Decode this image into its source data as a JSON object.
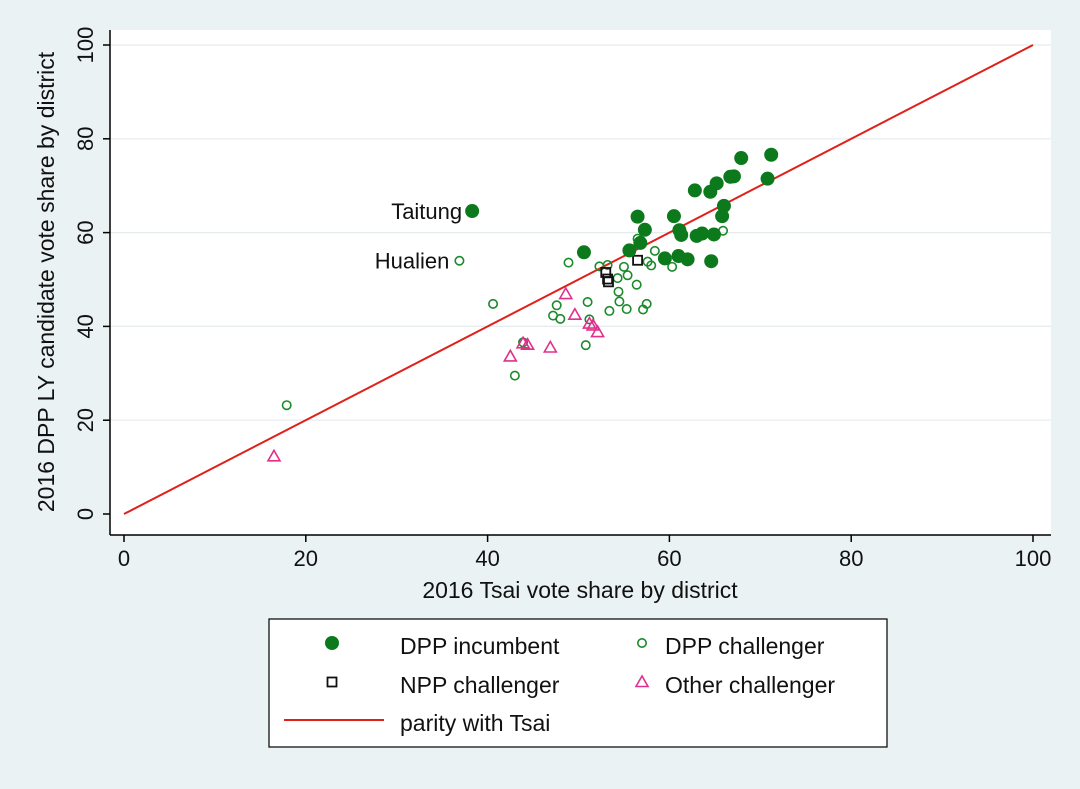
{
  "chart_data": {
    "type": "scatter",
    "title": "",
    "xlabel": "2016 Tsai vote share by district",
    "ylabel": "2016 DPP LY candidate vote share by district",
    "xlim": [
      0,
      100
    ],
    "ylim": [
      0,
      100
    ],
    "xticks": [
      0,
      20,
      40,
      60,
      80,
      100
    ],
    "yticks": [
      0,
      20,
      40,
      60,
      80,
      100
    ],
    "grid": "horizontal",
    "legend_position": "bottom",
    "colors": {
      "incumbent": "#0c7a1c",
      "challenger": "#1a8a2a",
      "npp": "#111111",
      "other": "#e0308c",
      "parity": "#e0201a",
      "plot_background": "#ffffff",
      "outer_background": "#eaf2f3"
    },
    "series": [
      {
        "name": "DPP incumbent",
        "marker": "filled-circle",
        "points": [
          [
            38.3,
            64.6
          ],
          [
            50.6,
            55.8
          ],
          [
            55.6,
            56.2
          ],
          [
            56.5,
            63.4
          ],
          [
            56.8,
            57.8
          ],
          [
            57.3,
            60.6
          ],
          [
            59.5,
            54.5
          ],
          [
            60.5,
            63.5
          ],
          [
            61.0,
            55.0
          ],
          [
            61.1,
            60.5
          ],
          [
            61.3,
            59.5
          ],
          [
            62.0,
            54.3
          ],
          [
            62.8,
            69.0
          ],
          [
            63.0,
            59.3
          ],
          [
            63.6,
            59.8
          ],
          [
            64.5,
            68.7
          ],
          [
            64.6,
            53.9
          ],
          [
            64.9,
            59.6
          ],
          [
            65.2,
            70.5
          ],
          [
            65.8,
            63.5
          ],
          [
            66.0,
            65.7
          ],
          [
            66.7,
            71.9
          ],
          [
            67.1,
            72.0
          ],
          [
            67.9,
            75.9
          ],
          [
            70.8,
            71.5
          ],
          [
            71.2,
            76.6
          ]
        ]
      },
      {
        "name": "DPP challenger",
        "marker": "hollow-circle",
        "points": [
          [
            17.9,
            23.2
          ],
          [
            36.9,
            54.0
          ],
          [
            40.6,
            44.8
          ],
          [
            43.0,
            29.5
          ],
          [
            43.9,
            36.6
          ],
          [
            47.2,
            42.3
          ],
          [
            47.6,
            44.5
          ],
          [
            48.0,
            41.6
          ],
          [
            48.9,
            53.6
          ],
          [
            50.8,
            36.0
          ],
          [
            51.0,
            45.2
          ],
          [
            51.2,
            41.5
          ],
          [
            52.3,
            52.8
          ],
          [
            53.2,
            53.1
          ],
          [
            53.4,
            43.3
          ],
          [
            54.3,
            50.3
          ],
          [
            54.4,
            47.4
          ],
          [
            54.5,
            45.3
          ],
          [
            55.0,
            52.7
          ],
          [
            55.3,
            43.7
          ],
          [
            55.4,
            50.9
          ],
          [
            56.4,
            48.9
          ],
          [
            56.5,
            58.7
          ],
          [
            57.1,
            43.6
          ],
          [
            57.5,
            44.8
          ],
          [
            57.6,
            53.8
          ],
          [
            58.0,
            53.0
          ],
          [
            58.4,
            56.1
          ],
          [
            60.3,
            52.7
          ],
          [
            65.9,
            60.4
          ]
        ]
      },
      {
        "name": "NPP challenger",
        "marker": "hollow-square",
        "points": [
          [
            53.0,
            51.5
          ],
          [
            53.2,
            50.1
          ],
          [
            53.3,
            49.5
          ],
          [
            56.5,
            54.1
          ]
        ]
      },
      {
        "name": "Other challenger",
        "marker": "hollow-triangle",
        "points": [
          [
            16.5,
            12.3
          ],
          [
            42.5,
            33.6
          ],
          [
            43.9,
            36.4
          ],
          [
            44.4,
            36.1
          ],
          [
            46.9,
            35.5
          ],
          [
            48.6,
            46.9
          ],
          [
            49.6,
            42.5
          ],
          [
            51.2,
            40.6
          ],
          [
            51.6,
            40.2
          ],
          [
            52.1,
            38.8
          ]
        ]
      }
    ],
    "reference_line": {
      "name": "parity with Tsai",
      "x": [
        0,
        100
      ],
      "y": [
        0,
        100
      ]
    },
    "annotations": [
      {
        "text": "Taitung",
        "x": 38.3,
        "y": 64.6
      },
      {
        "text": "Hualien",
        "x": 36.9,
        "y": 54.0
      }
    ]
  }
}
